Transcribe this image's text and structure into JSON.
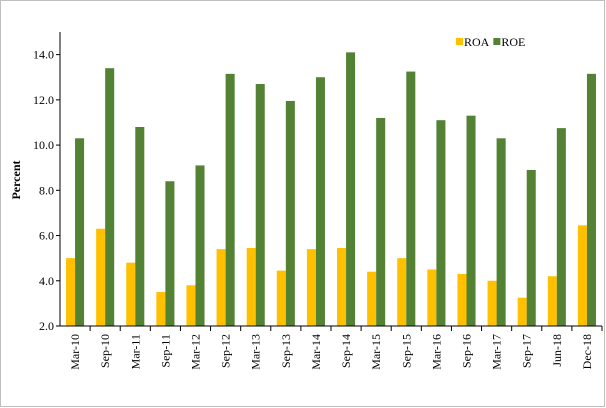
{
  "chart_data": {
    "type": "bar",
    "y_label": "Percent",
    "categories": [
      "Mar-10",
      "Sep-10",
      "Mar-11",
      "Sep-11",
      "Mar-12",
      "Sep-12",
      "Mar-13",
      "Sep-13",
      "Mar-14",
      "Sep-14",
      "Mar-15",
      "Sep-15",
      "Mar-16",
      "Sep-16",
      "Mar-17",
      "Sep-17",
      "Jun-18",
      "Dec-18"
    ],
    "series": [
      {
        "name": "ROA",
        "color": "#ffc000",
        "values": [
          5.0,
          6.3,
          4.8,
          3.5,
          3.8,
          5.4,
          5.45,
          4.45,
          5.4,
          5.45,
          4.4,
          5.0,
          4.5,
          4.3,
          4.0,
          3.25,
          4.2,
          6.45
        ]
      },
      {
        "name": "ROE",
        "color": "#548235",
        "values": [
          10.3,
          13.4,
          10.8,
          8.4,
          9.1,
          13.15,
          12.7,
          11.95,
          13.0,
          14.1,
          11.2,
          13.25,
          11.1,
          11.3,
          10.3,
          8.9,
          10.75,
          13.15
        ]
      }
    ],
    "ylim": [
      2,
      15
    ],
    "yticks": [
      {
        "value": 2,
        "label": "2.0"
      },
      {
        "value": 4,
        "label": "4.0"
      },
      {
        "value": 6,
        "label": "6.0"
      },
      {
        "value": 8,
        "label": "8.0"
      },
      {
        "value": 10,
        "label": "10.0"
      },
      {
        "value": 12,
        "label": "12.0"
      },
      {
        "value": 14,
        "label": "14.0"
      }
    ],
    "legend": "top-right"
  }
}
